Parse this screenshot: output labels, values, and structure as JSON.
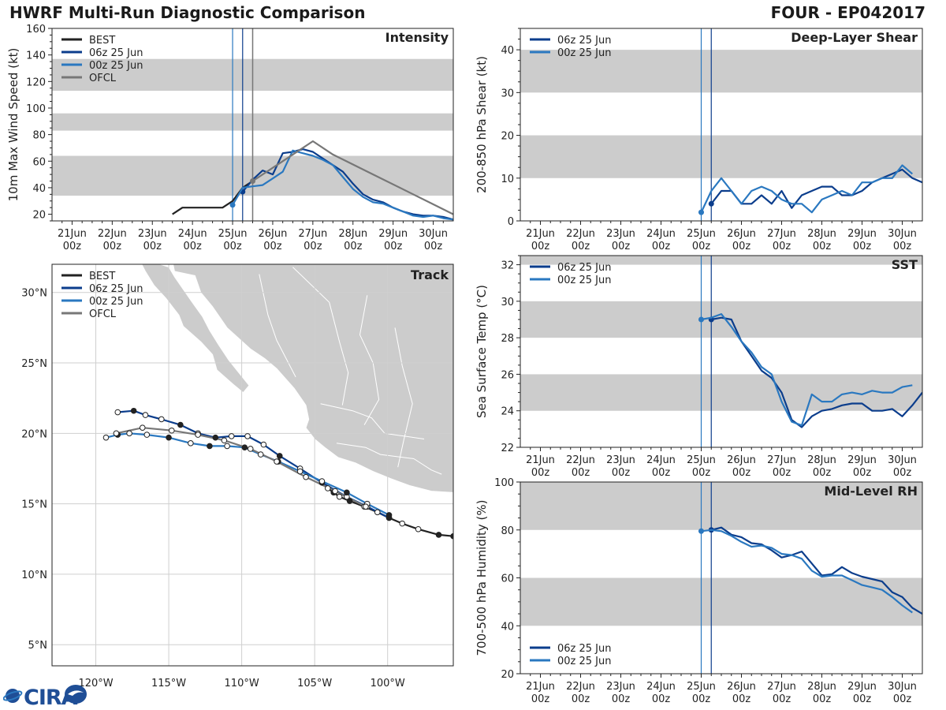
{
  "header": {
    "title": "HWRF Multi-Run Diagnostic Comparison",
    "storm_id": "FOUR - EP042017"
  },
  "logo": {
    "text": "CIRA"
  },
  "colors": {
    "best": "#222222",
    "run06": "#0b3d8c",
    "run00": "#2a78c0",
    "ofcl": "#777777",
    "band": "#cccccc",
    "land": "#cccccc",
    "grid": "#cfcfcf"
  },
  "time_axis": {
    "tick_labels_top": [
      "21Jun",
      "22Jun",
      "23Jun",
      "24Jun",
      "25Jun",
      "26Jun",
      "27Jun",
      "28Jun",
      "29Jun",
      "30Jun"
    ],
    "tick_labels_bottom": [
      "00z",
      "00z",
      "00z",
      "00z",
      "00z",
      "00z",
      "00z",
      "00z",
      "00z",
      "00z"
    ],
    "tick_days": [
      0,
      1,
      2,
      3,
      4,
      5,
      6,
      7,
      8,
      9
    ],
    "range_days": [
      -0.5,
      9.5
    ],
    "init_lines_days": [
      4.0,
      4.25
    ],
    "ofcl_init_line_day": 4.5
  },
  "chart_data": [
    {
      "id": "intensity",
      "type": "line",
      "title": "Intensity",
      "ylabel": "10m Max Wind Speed (kt)",
      "ylim": [
        15,
        160
      ],
      "yticks": [
        20,
        40,
        60,
        80,
        100,
        120,
        140,
        160
      ],
      "ytick_labels": [
        "20",
        "40",
        "60",
        "80",
        "100",
        "120",
        "140",
        "160"
      ],
      "bands": [
        [
          34,
          64
        ],
        [
          83,
          96
        ],
        [
          113,
          137
        ]
      ],
      "legend": [
        "BEST",
        "06z 25 Jun",
        "00z 25 Jun",
        "OFCL"
      ],
      "series": [
        {
          "name": "BEST",
          "color_key": "best",
          "x": [
            2.5,
            2.75,
            3.0,
            3.25,
            3.5,
            3.75,
            4.0,
            4.25,
            4.5
          ],
          "y": [
            20,
            25,
            25,
            25,
            25,
            25,
            30,
            40,
            45
          ]
        },
        {
          "name": "06z 25 Jun",
          "color_key": "run06",
          "marker_at_start": true,
          "x": [
            4.25,
            4.5,
            4.75,
            5.0,
            5.25,
            5.5,
            5.75,
            6.0,
            6.25,
            6.5,
            6.75,
            7.0,
            7.25,
            7.5,
            7.75,
            8.0,
            8.25,
            8.5,
            8.75,
            9.0,
            9.25,
            9.5
          ],
          "y": [
            37,
            46,
            53,
            50,
            66,
            67,
            69,
            67,
            62,
            57,
            52,
            43,
            35,
            31,
            29,
            25,
            22,
            20,
            19,
            19,
            18,
            16
          ]
        },
        {
          "name": "00z 25 Jun",
          "color_key": "run00",
          "marker_at_start": true,
          "x": [
            4.0,
            4.25,
            4.5,
            4.75,
            5.0,
            5.25,
            5.5,
            5.75,
            6.0,
            6.25,
            6.5,
            6.75,
            7.0,
            7.25,
            7.5,
            7.75,
            8.0,
            8.25,
            8.5,
            8.75,
            9.0,
            9.25,
            9.5
          ],
          "y": [
            27,
            40,
            41,
            42,
            47,
            52,
            68,
            66,
            64,
            61,
            57,
            48,
            39,
            33,
            29,
            28,
            25,
            22,
            19,
            18,
            19,
            17,
            16
          ]
        },
        {
          "name": "OFCL",
          "color_key": "ofcl",
          "marker_at_start": true,
          "x": [
            4.5,
            5.0,
            5.5,
            6.0,
            6.5,
            7.5,
            8.5,
            9.5
          ],
          "y": [
            45,
            55,
            65,
            75,
            65,
            50,
            35,
            20
          ]
        }
      ]
    },
    {
      "id": "shear",
      "type": "line",
      "title": "Deep-Layer Shear",
      "ylabel": "200-850 hPa Shear (kt)",
      "ylim": [
        0,
        45
      ],
      "yticks": [
        0,
        10,
        20,
        30,
        40
      ],
      "ytick_labels": [
        "0",
        "10",
        "20",
        "30",
        "40"
      ],
      "bands": [
        [
          10,
          20
        ],
        [
          30,
          40
        ]
      ],
      "legend": [
        "06z 25 Jun",
        "00z 25 Jun"
      ],
      "series": [
        {
          "name": "06z 25 Jun",
          "color_key": "run06",
          "marker_at_start": true,
          "x": [
            4.25,
            4.5,
            4.75,
            5.0,
            5.25,
            5.5,
            5.75,
            6.0,
            6.25,
            6.5,
            6.75,
            7.0,
            7.25,
            7.5,
            7.75,
            8.0,
            8.25,
            8.5,
            8.75,
            9.0,
            9.25,
            9.5
          ],
          "y": [
            4,
            7,
            7,
            4,
            4,
            6,
            4,
            7,
            3,
            6,
            7,
            8,
            8,
            6,
            6,
            7,
            9,
            10,
            11,
            12,
            10,
            9
          ]
        },
        {
          "name": "00z 25 Jun",
          "color_key": "run00",
          "marker_at_start": true,
          "x": [
            4.0,
            4.25,
            4.5,
            4.75,
            5.0,
            5.25,
            5.5,
            5.75,
            6.0,
            6.25,
            6.5,
            6.75,
            7.0,
            7.25,
            7.5,
            7.75,
            8.0,
            8.25,
            8.5,
            8.75,
            9.0,
            9.25
          ],
          "y": [
            2,
            7,
            10,
            7,
            4,
            7,
            8,
            7,
            5,
            4,
            4,
            2,
            5,
            6,
            7,
            6,
            9,
            9,
            10,
            10,
            13,
            11
          ]
        }
      ]
    },
    {
      "id": "sst",
      "type": "line",
      "title": "SST",
      "ylabel": "Sea Surface Temp (°C)",
      "ylim": [
        22,
        32.5
      ],
      "yticks": [
        22,
        24,
        26,
        28,
        30,
        32
      ],
      "ytick_labels": [
        "22",
        "24",
        "26",
        "28",
        "30",
        "32"
      ],
      "bands": [
        [
          24,
          26
        ],
        [
          28,
          30
        ],
        [
          32,
          33
        ]
      ],
      "legend": [
        "06z 25 Jun",
        "00z 25 Jun"
      ],
      "series": [
        {
          "name": "06z 25 Jun",
          "color_key": "run06",
          "marker_at_start": true,
          "x": [
            4.25,
            4.5,
            4.75,
            5.0,
            5.25,
            5.5,
            5.75,
            6.0,
            6.25,
            6.5,
            6.75,
            7.0,
            7.25,
            7.5,
            7.75,
            8.0,
            8.25,
            8.5,
            8.75,
            9.0,
            9.25,
            9.5
          ],
          "y": [
            29.0,
            29.1,
            29.0,
            27.8,
            27.0,
            26.2,
            25.8,
            25.0,
            23.5,
            23.1,
            23.7,
            24.0,
            24.1,
            24.3,
            24.4,
            24.4,
            24.0,
            24.0,
            24.1,
            23.7,
            24.3,
            25.0
          ]
        },
        {
          "name": "00z 25 Jun",
          "color_key": "run00",
          "marker_at_start": true,
          "x": [
            4.0,
            4.25,
            4.5,
            4.75,
            5.0,
            5.25,
            5.5,
            5.75,
            6.0,
            6.25,
            6.5,
            6.75,
            7.0,
            7.25,
            7.5,
            7.75,
            8.0,
            8.25,
            8.5,
            8.75,
            9.0,
            9.25
          ],
          "y": [
            29.0,
            29.1,
            29.3,
            28.6,
            27.8,
            27.2,
            26.4,
            26.0,
            24.5,
            23.4,
            23.2,
            24.9,
            24.5,
            24.5,
            24.9,
            25.0,
            24.9,
            25.1,
            25.0,
            25.0,
            25.3,
            25.4
          ]
        }
      ]
    },
    {
      "id": "rh",
      "type": "line",
      "title": "Mid-Level RH",
      "ylabel": "700-500 hPa Humidity (%)",
      "ylim": [
        20,
        100
      ],
      "yticks": [
        20,
        40,
        60,
        80,
        100
      ],
      "ytick_labels": [
        "20",
        "40",
        "60",
        "80",
        "100"
      ],
      "bands": [
        [
          40,
          60
        ],
        [
          80,
          100
        ]
      ],
      "legend": [
        "06z 25 Jun",
        "00z 25 Jun"
      ],
      "series": [
        {
          "name": "06z 25 Jun",
          "color_key": "run06",
          "marker_at_start": true,
          "x": [
            4.25,
            4.5,
            4.75,
            5.0,
            5.25,
            5.5,
            5.75,
            6.0,
            6.25,
            6.5,
            6.75,
            7.0,
            7.25,
            7.5,
            7.75,
            8.0,
            8.25,
            8.5,
            8.75,
            9.0,
            9.25,
            9.5
          ],
          "y": [
            80,
            81,
            78,
            77,
            74.5,
            74,
            71.5,
            68.5,
            69.5,
            71,
            66,
            61,
            61.5,
            64.5,
            62,
            60.5,
            59.5,
            58.5,
            54,
            52,
            47.5,
            45
          ]
        },
        {
          "name": "00z 25 Jun",
          "color_key": "run00",
          "marker_at_start": true,
          "x": [
            4.0,
            4.25,
            4.5,
            4.75,
            5.0,
            5.25,
            5.5,
            5.75,
            6.0,
            6.25,
            6.5,
            6.75,
            7.0,
            7.25,
            7.5,
            7.75,
            8.0,
            8.25,
            8.5,
            8.75,
            9.0,
            9.25
          ],
          "y": [
            79.5,
            80,
            79.5,
            77.5,
            75,
            73,
            73.5,
            72.5,
            70,
            69.5,
            68,
            63,
            60.5,
            61,
            61,
            59,
            57,
            56,
            55,
            52,
            48.5,
            45.5
          ]
        }
      ]
    },
    {
      "id": "track",
      "type": "map-track",
      "title": "Track",
      "xlim_lon": [
        -123,
        -95.5
      ],
      "ylim_lat": [
        3.5,
        32
      ],
      "lon_ticks": [
        -120,
        -115,
        -110,
        -105,
        -100
      ],
      "lon_labels": [
        "120°W",
        "115°W",
        "110°W",
        "105°W",
        "100°W"
      ],
      "lat_ticks": [
        5,
        10,
        15,
        20,
        25,
        30
      ],
      "lat_labels": [
        "5°N",
        "10°N",
        "15°N",
        "20°N",
        "25°N",
        "30°N"
      ],
      "legend": [
        "BEST",
        "06z 25 Jun",
        "00z 25 Jun",
        "OFCL"
      ],
      "series": [
        {
          "name": "BEST",
          "color_key": "best",
          "lon": [
            -95.5,
            -96.5,
            -97.9,
            -99.0,
            -99.9,
            -100.7,
            -101.6,
            -102.6,
            -103.3,
            -103.7,
            -104.1
          ],
          "lat": [
            12.7,
            12.8,
            13.2,
            13.6,
            14.0,
            14.4,
            14.8,
            15.2,
            15.5,
            15.8,
            16.1
          ],
          "filled_markers": [
            true,
            true,
            false,
            false,
            true,
            false,
            false,
            true,
            false,
            true,
            false
          ]
        },
        {
          "name": "06z 25 Jun",
          "color_key": "run06",
          "lon": [
            -99.9,
            -101.4,
            -102.8,
            -104.5,
            -106.0,
            -107.4,
            -108.5,
            -109.6,
            -110.7,
            -111.8,
            -113.0,
            -114.2,
            -115.5,
            -116.6,
            -117.4,
            -118.5
          ],
          "lat": [
            14.0,
            14.8,
            15.5,
            16.5,
            17.5,
            18.4,
            19.2,
            19.8,
            19.8,
            19.7,
            20.0,
            20.6,
            21.0,
            21.3,
            21.6,
            21.5
          ],
          "filled_markers": [
            true,
            false,
            false,
            true,
            false,
            true,
            false,
            false,
            false,
            true,
            false,
            true,
            false,
            false,
            true,
            false
          ]
        },
        {
          "name": "00z 25 Jun",
          "color_key": "run00",
          "lon": [
            -99.9,
            -101.4,
            -102.8,
            -104.5,
            -106.0,
            -107.5,
            -108.7,
            -109.8,
            -111.0,
            -112.2,
            -113.5,
            -115.0,
            -116.5,
            -117.7,
            -118.5,
            -119.3
          ],
          "lat": [
            14.2,
            15.0,
            15.8,
            16.6,
            17.3,
            18.0,
            18.5,
            19.0,
            19.1,
            19.1,
            19.3,
            19.7,
            19.9,
            20.0,
            19.9,
            19.7
          ],
          "filled_markers": [
            true,
            false,
            true,
            false,
            false,
            true,
            false,
            true,
            false,
            true,
            false,
            true,
            false,
            false,
            true,
            false
          ]
        },
        {
          "name": "OFCL",
          "color_key": "ofcl",
          "lon": [
            -101.5,
            -103.6,
            -105.6,
            -107.6,
            -109.4,
            -111.2,
            -113.0,
            -114.8,
            -116.8,
            -118.6
          ],
          "lat": [
            14.8,
            15.9,
            16.9,
            18.0,
            18.9,
            19.5,
            19.9,
            20.2,
            20.4,
            20.0
          ],
          "filled_markers": [
            false,
            false,
            false,
            false,
            false,
            false,
            false,
            false,
            false,
            false
          ]
        }
      ]
    }
  ]
}
